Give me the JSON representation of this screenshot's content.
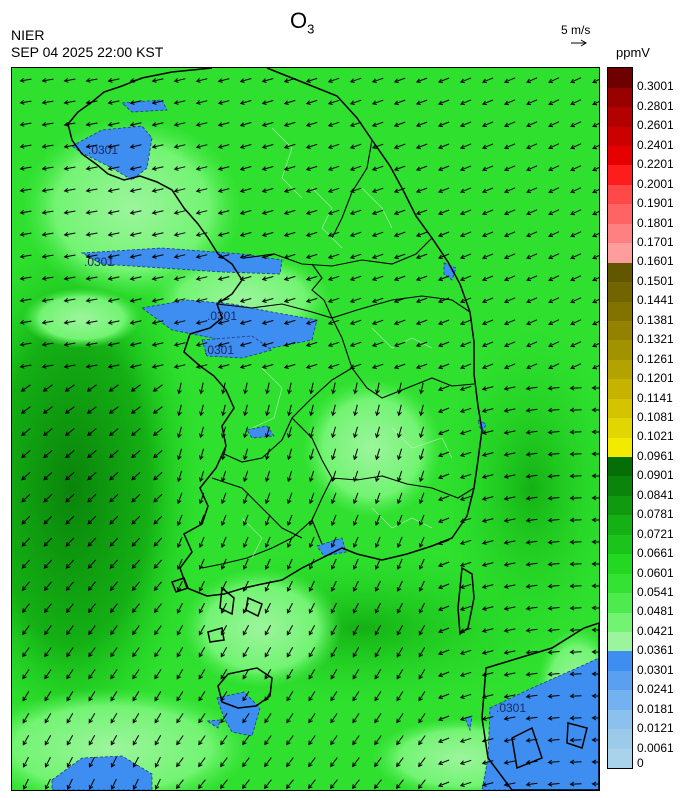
{
  "header": {
    "title_main": "O",
    "title_sub": "3",
    "organization": "NIER",
    "timestamp": "SEP 04 2025 22:00 KST",
    "wind_scale_label": "5 m/s",
    "units": "ppmV"
  },
  "map": {
    "contour_labels": [
      ".0301",
      ".0301",
      ".0301",
      ".0301",
      ".0301"
    ],
    "icons": [
      "wind-vector-arrow",
      "coastline",
      "province-boundary"
    ]
  },
  "colorbar": {
    "labels": [
      "0",
      "0.0061",
      "0.0121",
      "0.0181",
      "0.0241",
      "0.0301",
      "0.0361",
      "0.0421",
      "0.0481",
      "0.0541",
      "0.0601",
      "0.0661",
      "0.0721",
      "0.0781",
      "0.0841",
      "0.0901",
      "0.0961",
      "0.1021",
      "0.1081",
      "0.1141",
      "0.1201",
      "0.1261",
      "0.1321",
      "0.1381",
      "0.1441",
      "0.1501",
      "0.1601",
      "0.1701",
      "0.1801",
      "0.1901",
      "0.2001",
      "0.2201",
      "0.2401",
      "0.2601",
      "0.2801",
      "0.3001"
    ],
    "colors": [
      "#a8d3ea",
      "#9ccbe9",
      "#8cc0ee",
      "#74b1f0",
      "#5aa0f0",
      "#3d8ef0",
      "#9cf59c",
      "#72f472",
      "#4deb4d",
      "#33e233",
      "#22d822",
      "#1ac41a",
      "#14b014",
      "#0f9a0f",
      "#0a840a",
      "#066e06",
      "#f2ea00",
      "#e2d600",
      "#d4c400",
      "#c6b300",
      "#b4a200",
      "#a39200",
      "#928200",
      "#827300",
      "#726400",
      "#625600",
      "#ff9c9c",
      "#ff8080",
      "#ff6464",
      "#ff4848",
      "#ff1c1c",
      "#e60000",
      "#cc0000",
      "#b30000",
      "#990000",
      "#6e0000"
    ]
  }
}
